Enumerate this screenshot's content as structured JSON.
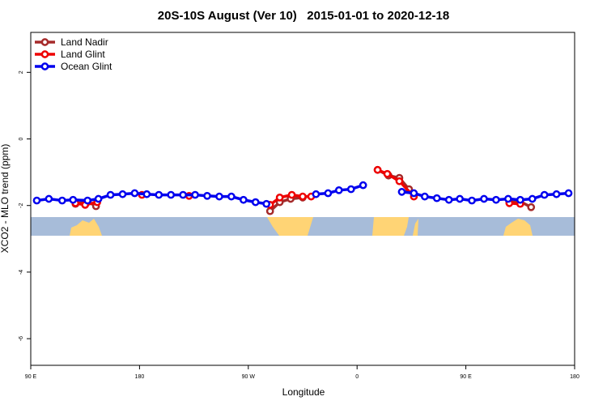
{
  "chart_data": {
    "type": "line",
    "title": "20S-10S August (Ver 10)   2015-01-01 to 2020-12-18",
    "xlabel": "Longitude",
    "ylabel": "XCO2 - MLO trend (ppm)",
    "xlim": [
      90,
      540
    ],
    "ylim": [
      -6.8,
      3.2
    ],
    "xticks": [
      {
        "value": 90,
        "label": "90 E"
      },
      {
        "value": 180,
        "label": "180"
      },
      {
        "value": 270,
        "label": "90 W"
      },
      {
        "value": 360,
        "label": "0"
      },
      {
        "value": 450,
        "label": "90 E"
      },
      {
        "value": 540,
        "label": "180"
      }
    ],
    "yticks": [
      2,
      0,
      -2,
      -4,
      -6
    ],
    "legend": "top-left",
    "series": [
      {
        "name": "Land Nadir",
        "color": "#a52a2a",
        "x": [
          127,
          137,
          144,
          null,
          288,
          296,
          305,
          315,
          null,
          377,
          386,
          395,
          403,
          null,
          486,
          495,
          504
        ],
        "values": [
          -1.95,
          -1.88,
          -2.02,
          null,
          -2.17,
          -1.9,
          -1.8,
          -1.76,
          null,
          -0.93,
          -1.1,
          -1.17,
          -1.51,
          null,
          -1.9,
          -1.88,
          -2.05
        ]
      },
      {
        "name": "Land Glint",
        "color": "#ee0000",
        "x": [
          127,
          135,
          145,
          null,
          182,
          null,
          221,
          null,
          288,
          296,
          306,
          315,
          322,
          null,
          377,
          385,
          395,
          407,
          null,
          486,
          495
        ],
        "values": [
          -1.93,
          -1.98,
          -1.9,
          null,
          -1.68,
          null,
          -1.71,
          null,
          -1.98,
          -1.76,
          -1.68,
          -1.73,
          -1.73,
          null,
          -0.93,
          -1.05,
          -1.27,
          -1.73,
          null,
          -1.93,
          -1.95
        ]
      },
      {
        "name": "Ocean Glint",
        "color": "#0000ee",
        "x": [
          95,
          105,
          116,
          125,
          137,
          146,
          156,
          166,
          176,
          186,
          196,
          206,
          216,
          226,
          236,
          246,
          256,
          266,
          276,
          285,
          null,
          326,
          336,
          345,
          355,
          365,
          null,
          397,
          407,
          416,
          426,
          436,
          445,
          455,
          465,
          475,
          485,
          495,
          505,
          515,
          525,
          535
        ],
        "values": [
          -1.85,
          -1.8,
          -1.85,
          -1.83,
          -1.85,
          -1.8,
          -1.68,
          -1.66,
          -1.63,
          -1.66,
          -1.68,
          -1.68,
          -1.68,
          -1.68,
          -1.71,
          -1.73,
          -1.73,
          -1.83,
          -1.9,
          -1.95,
          null,
          -1.66,
          -1.63,
          -1.54,
          -1.51,
          -1.39,
          null,
          -1.59,
          -1.63,
          -1.73,
          -1.78,
          -1.83,
          -1.8,
          -1.85,
          -1.8,
          -1.83,
          -1.8,
          -1.83,
          -1.8,
          -1.68,
          -1.66,
          -1.63
        ]
      }
    ]
  }
}
